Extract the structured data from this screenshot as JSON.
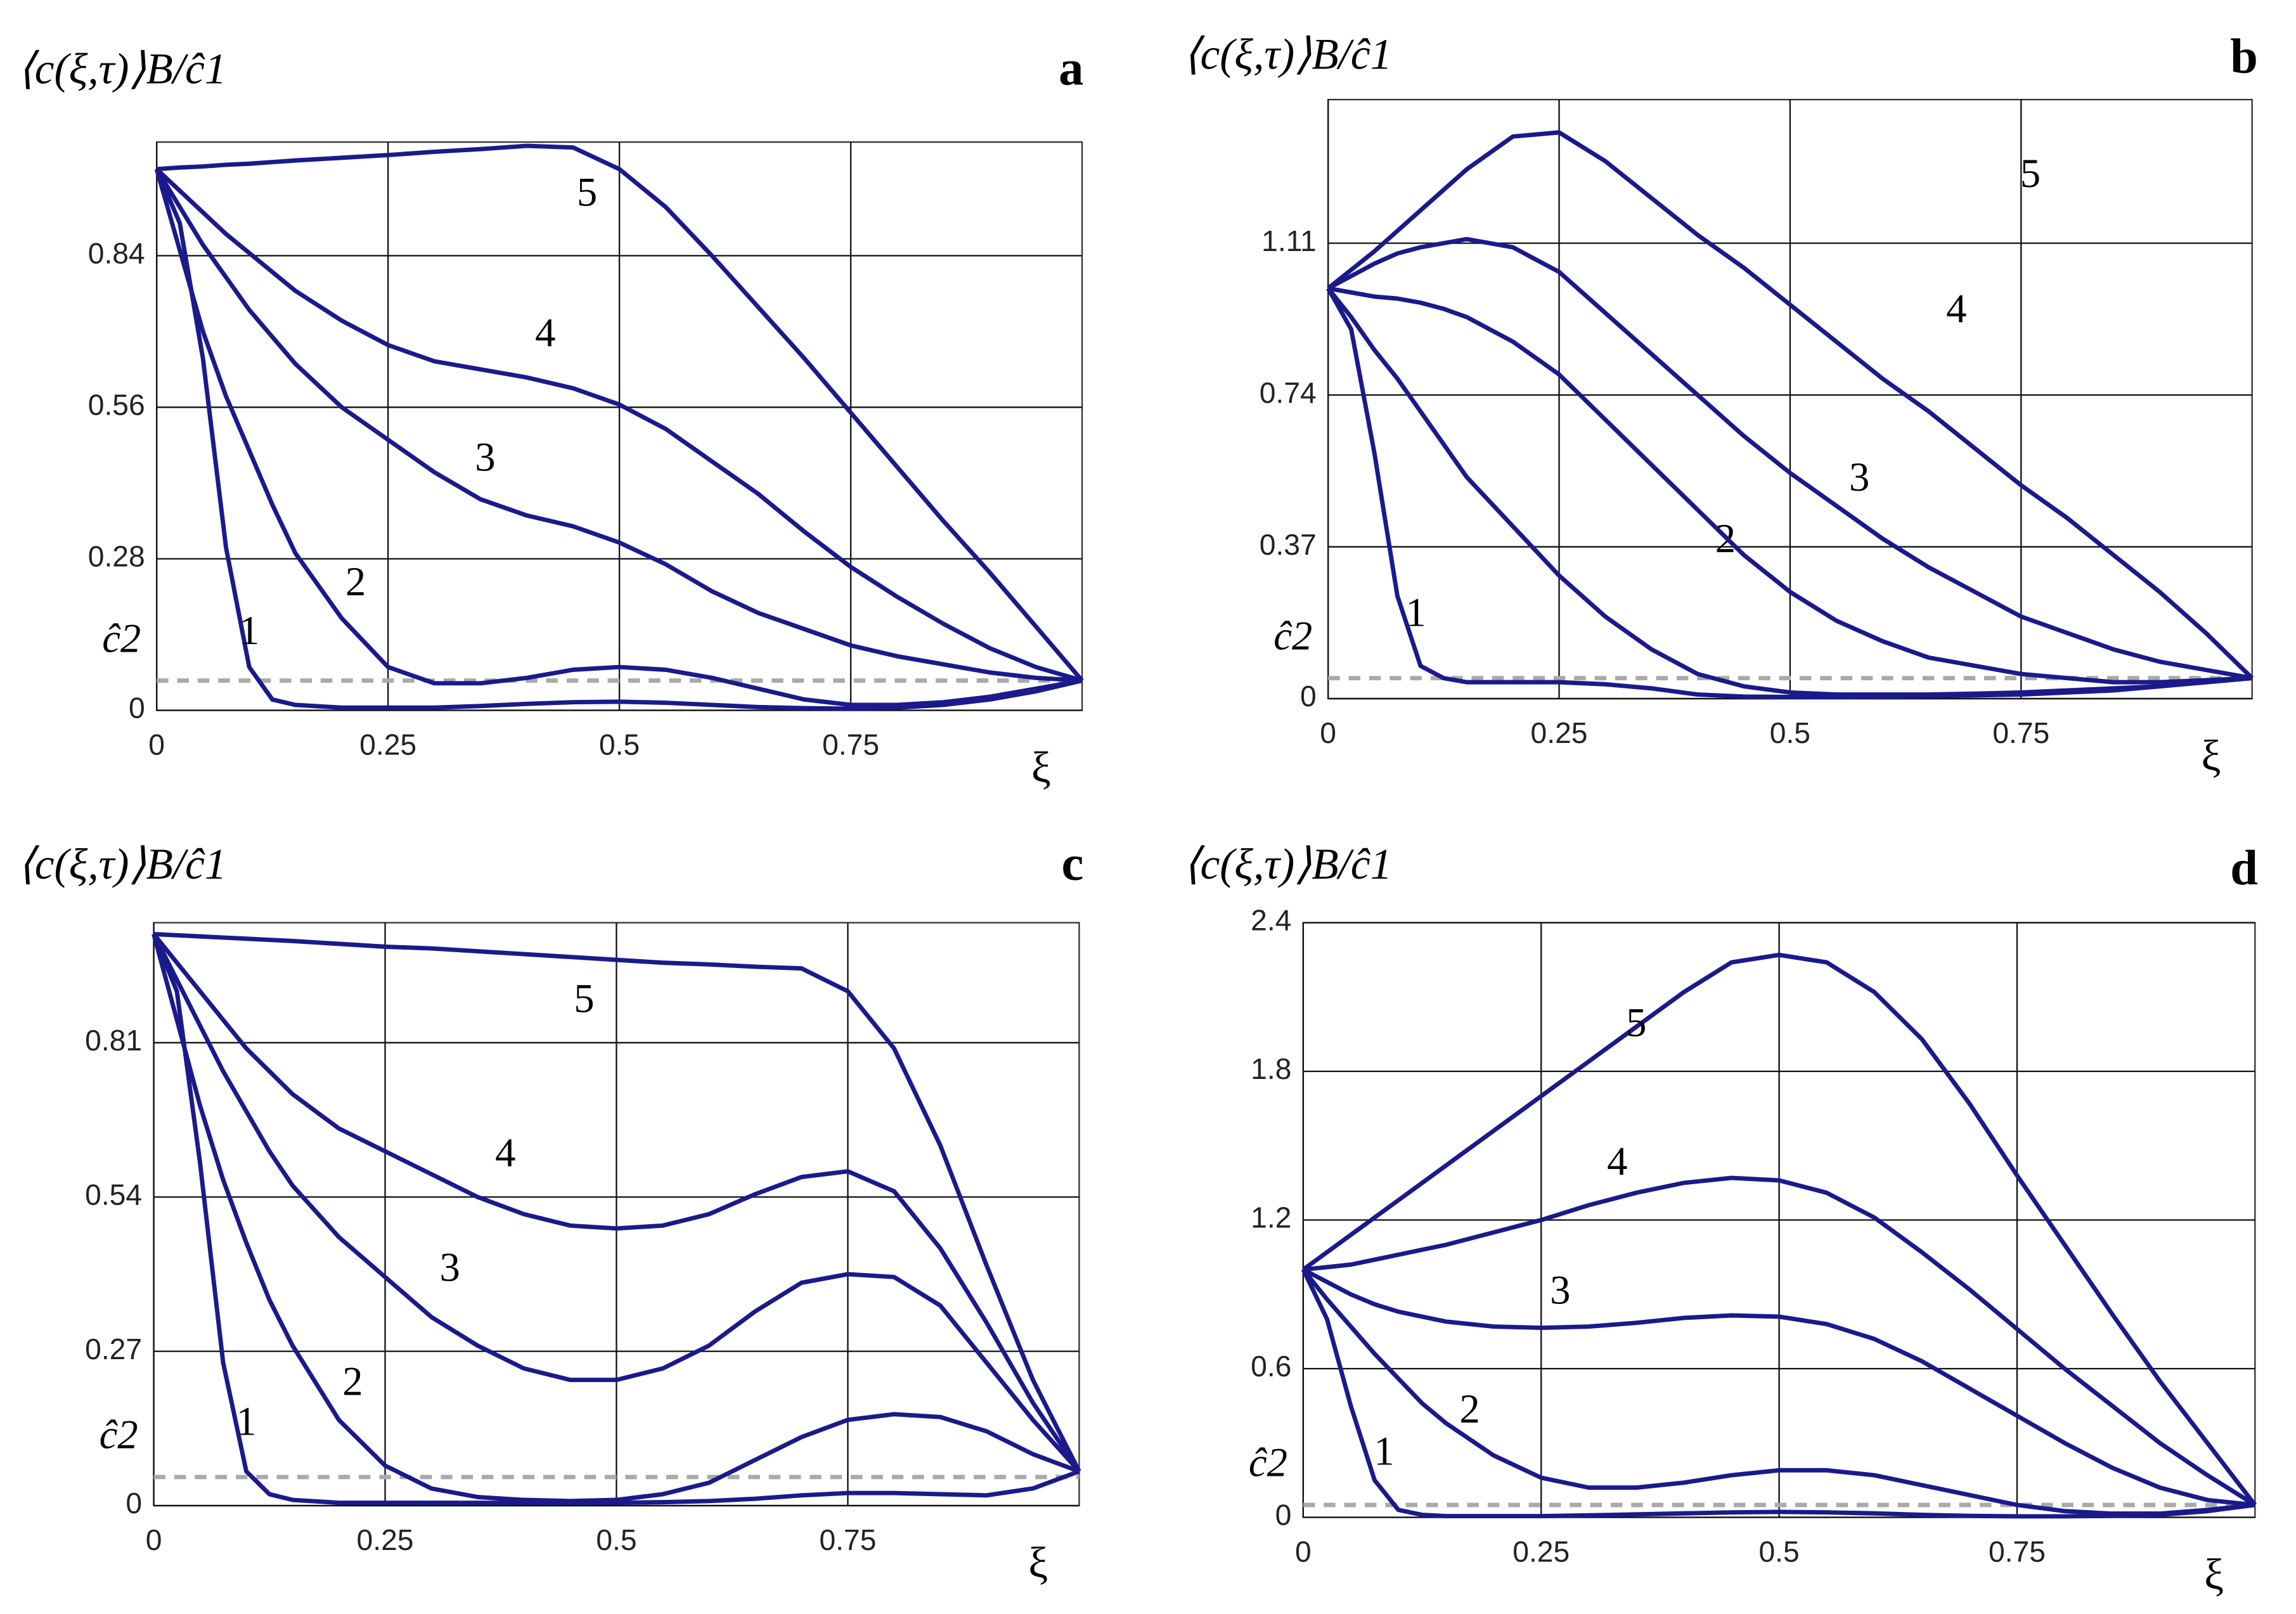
{
  "chart_data": [
    {
      "type": "line",
      "panel_label": "a",
      "y_label": "⟨c(ξ,τ)⟩B/ĉ1",
      "x_label": "ξ",
      "x": [
        0,
        0.025,
        0.05,
        0.075,
        0.1,
        0.125,
        0.15,
        0.2,
        0.25,
        0.3,
        0.35,
        0.4,
        0.45,
        0.5,
        0.55,
        0.6,
        0.65,
        0.7,
        0.75,
        0.8,
        0.85,
        0.9,
        0.95,
        1
      ],
      "xlim": [
        0,
        1
      ],
      "ylim": [
        0,
        1.05
      ],
      "xticks": [
        0,
        0.25,
        0.5,
        0.75
      ],
      "yticks": [
        0,
        0.28,
        0.56,
        0.84
      ],
      "grid": true,
      "reference_line": {
        "label": "ĉ2",
        "value": 0.055,
        "color": "#aaaaaa"
      },
      "series": [
        {
          "name": "1",
          "color": "#1a1a8c",
          "values": [
            1,
            0.9,
            0.65,
            0.3,
            0.08,
            0.02,
            0.01,
            0.005,
            0.005,
            0.005,
            0.008,
            0.012,
            0.015,
            0.016,
            0.014,
            0.01,
            0.006,
            0.004,
            0.003,
            0.005,
            0.01,
            0.02,
            0.035,
            0.055
          ]
        },
        {
          "name": "2",
          "color": "#1a1a8c",
          "values": [
            1,
            0.85,
            0.7,
            0.58,
            0.48,
            0.38,
            0.29,
            0.17,
            0.08,
            0.05,
            0.05,
            0.06,
            0.075,
            0.08,
            0.075,
            0.06,
            0.04,
            0.02,
            0.01,
            0.01,
            0.015,
            0.025,
            0.04,
            0.055
          ]
        },
        {
          "name": "3",
          "color": "#1a1a8c",
          "values": [
            1,
            0.93,
            0.86,
            0.8,
            0.74,
            0.69,
            0.64,
            0.56,
            0.5,
            0.44,
            0.39,
            0.36,
            0.34,
            0.31,
            0.27,
            0.22,
            0.18,
            0.15,
            0.12,
            0.1,
            0.085,
            0.07,
            0.06,
            0.055
          ]
        },
        {
          "name": "4",
          "color": "#1a1a8c",
          "values": [
            1,
            0.96,
            0.92,
            0.88,
            0.845,
            0.81,
            0.775,
            0.72,
            0.675,
            0.645,
            0.63,
            0.615,
            0.595,
            0.565,
            0.52,
            0.46,
            0.4,
            0.33,
            0.265,
            0.21,
            0.16,
            0.115,
            0.08,
            0.055
          ]
        },
        {
          "name": "5",
          "color": "#1a1a8c",
          "values": [
            1,
            1.003,
            1.005,
            1.008,
            1.01,
            1.013,
            1.016,
            1.021,
            1.026,
            1.032,
            1.037,
            1.043,
            1.04,
            1.0,
            0.93,
            0.84,
            0.745,
            0.65,
            0.55,
            0.45,
            0.35,
            0.255,
            0.155,
            0.055
          ]
        }
      ]
    },
    {
      "type": "line",
      "panel_label": "b",
      "y_label": "⟨c(ξ,τ)⟩B/ĉ1",
      "x_label": "ξ",
      "x": [
        0,
        0.025,
        0.05,
        0.075,
        0.1,
        0.125,
        0.15,
        0.2,
        0.25,
        0.3,
        0.35,
        0.4,
        0.45,
        0.5,
        0.55,
        0.6,
        0.65,
        0.7,
        0.75,
        0.8,
        0.85,
        0.9,
        0.95,
        1
      ],
      "xlim": [
        0,
        1
      ],
      "ylim": [
        0,
        1.46
      ],
      "xticks": [
        0,
        0.25,
        0.5,
        0.75
      ],
      "yticks": [
        0,
        0.37,
        0.74,
        1.11
      ],
      "grid": true,
      "reference_line": {
        "label": "ĉ2",
        "value": 0.05,
        "color": "#aaaaaa"
      },
      "series": [
        {
          "name": "1",
          "color": "#1a1a8c",
          "values": [
            1,
            0.9,
            0.6,
            0.25,
            0.08,
            0.05,
            0.04,
            0.04,
            0.04,
            0.035,
            0.025,
            0.01,
            0.005,
            0.004,
            0.004,
            0.005,
            0.006,
            0.008,
            0.01,
            0.015,
            0.02,
            0.03,
            0.04,
            0.05
          ]
        },
        {
          "name": "2",
          "color": "#1a1a8c",
          "values": [
            1,
            0.93,
            0.85,
            0.78,
            0.7,
            0.62,
            0.54,
            0.42,
            0.3,
            0.2,
            0.12,
            0.06,
            0.03,
            0.015,
            0.01,
            0.01,
            0.01,
            0.012,
            0.015,
            0.02,
            0.025,
            0.03,
            0.04,
            0.05
          ]
        },
        {
          "name": "3",
          "color": "#1a1a8c",
          "values": [
            1,
            0.99,
            0.98,
            0.975,
            0.965,
            0.95,
            0.93,
            0.87,
            0.79,
            0.68,
            0.57,
            0.46,
            0.35,
            0.26,
            0.19,
            0.14,
            0.1,
            0.08,
            0.06,
            0.05,
            0.04,
            0.04,
            0.045,
            0.05
          ]
        },
        {
          "name": "4",
          "color": "#1a1a8c",
          "values": [
            1,
            1.03,
            1.06,
            1.085,
            1.1,
            1.11,
            1.12,
            1.1,
            1.04,
            0.94,
            0.84,
            0.74,
            0.64,
            0.55,
            0.47,
            0.39,
            0.32,
            0.26,
            0.2,
            0.16,
            0.12,
            0.09,
            0.07,
            0.05
          ]
        },
        {
          "name": "5",
          "color": "#1a1a8c",
          "values": [
            1,
            1.045,
            1.09,
            1.14,
            1.19,
            1.24,
            1.29,
            1.37,
            1.38,
            1.31,
            1.22,
            1.13,
            1.05,
            0.96,
            0.87,
            0.78,
            0.7,
            0.61,
            0.52,
            0.44,
            0.35,
            0.26,
            0.16,
            0.05
          ]
        }
      ]
    },
    {
      "type": "line",
      "panel_label": "c",
      "y_label": "⟨c(ξ,τ)⟩B/ĉ1",
      "x_label": "ξ",
      "x": [
        0,
        0.025,
        0.05,
        0.075,
        0.1,
        0.125,
        0.15,
        0.2,
        0.25,
        0.3,
        0.35,
        0.4,
        0.45,
        0.5,
        0.55,
        0.6,
        0.65,
        0.7,
        0.75,
        0.8,
        0.85,
        0.9,
        0.95,
        1
      ],
      "xlim": [
        0,
        1
      ],
      "ylim": [
        0,
        1.02
      ],
      "xticks": [
        0,
        0.25,
        0.5,
        0.75
      ],
      "yticks": [
        0,
        0.27,
        0.54,
        0.81
      ],
      "grid": true,
      "reference_line": {
        "label": "ĉ2",
        "value": 0.05,
        "color": "#aaaaaa"
      },
      "series": [
        {
          "name": "1",
          "color": "#1a1a8c",
          "values": [
            1,
            0.9,
            0.6,
            0.25,
            0.06,
            0.02,
            0.01,
            0.005,
            0.005,
            0.005,
            0.005,
            0.005,
            0.005,
            0.005,
            0.006,
            0.008,
            0.012,
            0.018,
            0.022,
            0.022,
            0.02,
            0.018,
            0.03,
            0.06
          ]
        },
        {
          "name": "2",
          "color": "#1a1a8c",
          "values": [
            1,
            0.85,
            0.7,
            0.57,
            0.46,
            0.36,
            0.28,
            0.15,
            0.07,
            0.03,
            0.015,
            0.01,
            0.008,
            0.01,
            0.02,
            0.04,
            0.08,
            0.12,
            0.15,
            0.16,
            0.155,
            0.13,
            0.09,
            0.06
          ]
        },
        {
          "name": "3",
          "color": "#1a1a8c",
          "values": [
            1,
            0.92,
            0.84,
            0.76,
            0.69,
            0.62,
            0.56,
            0.47,
            0.4,
            0.33,
            0.28,
            0.24,
            0.22,
            0.22,
            0.24,
            0.28,
            0.34,
            0.39,
            0.405,
            0.4,
            0.35,
            0.25,
            0.15,
            0.06
          ]
        },
        {
          "name": "4",
          "color": "#1a1a8c",
          "values": [
            1,
            0.95,
            0.9,
            0.85,
            0.8,
            0.76,
            0.72,
            0.66,
            0.62,
            0.58,
            0.54,
            0.51,
            0.49,
            0.485,
            0.49,
            0.51,
            0.545,
            0.575,
            0.585,
            0.55,
            0.45,
            0.32,
            0.18,
            0.06
          ]
        },
        {
          "name": "5",
          "color": "#1a1a8c",
          "values": [
            1,
            0.998,
            0.996,
            0.994,
            0.992,
            0.99,
            0.988,
            0.983,
            0.978,
            0.975,
            0.97,
            0.965,
            0.96,
            0.955,
            0.95,
            0.947,
            0.943,
            0.94,
            0.9,
            0.8,
            0.63,
            0.42,
            0.22,
            0.06
          ]
        }
      ]
    },
    {
      "type": "line",
      "panel_label": "d",
      "y_label": "⟨c(ξ,τ)⟩B/ĉ1",
      "x_label": "ξ",
      "x": [
        0,
        0.025,
        0.05,
        0.075,
        0.1,
        0.125,
        0.15,
        0.2,
        0.25,
        0.3,
        0.35,
        0.4,
        0.45,
        0.5,
        0.55,
        0.6,
        0.65,
        0.7,
        0.75,
        0.8,
        0.85,
        0.9,
        0.95,
        1
      ],
      "xlim": [
        0,
        1
      ],
      "ylim": [
        0,
        2.4
      ],
      "xticks": [
        0,
        0.25,
        0.5,
        0.75
      ],
      "yticks": [
        0,
        0.6,
        1.2,
        1.8,
        2.4
      ],
      "grid": true,
      "reference_line": {
        "label": "ĉ2",
        "value": 0.05,
        "color": "#aaaaaa"
      },
      "series": [
        {
          "name": "1",
          "color": "#1a1a8c",
          "values": [
            1,
            0.8,
            0.45,
            0.15,
            0.03,
            0.01,
            0.005,
            0.005,
            0.005,
            0.008,
            0.012,
            0.016,
            0.02,
            0.022,
            0.02,
            0.016,
            0.01,
            0.006,
            0.004,
            0.004,
            0.006,
            0.01,
            0.025,
            0.05
          ]
        },
        {
          "name": "2",
          "color": "#1a1a8c",
          "values": [
            1,
            0.88,
            0.77,
            0.66,
            0.56,
            0.46,
            0.38,
            0.25,
            0.16,
            0.12,
            0.12,
            0.14,
            0.17,
            0.19,
            0.19,
            0.17,
            0.13,
            0.09,
            0.05,
            0.025,
            0.015,
            0.015,
            0.03,
            0.05
          ]
        },
        {
          "name": "3",
          "color": "#1a1a8c",
          "values": [
            1,
            0.95,
            0.9,
            0.86,
            0.83,
            0.81,
            0.79,
            0.77,
            0.765,
            0.77,
            0.785,
            0.805,
            0.815,
            0.81,
            0.78,
            0.72,
            0.63,
            0.52,
            0.41,
            0.3,
            0.2,
            0.12,
            0.07,
            0.05
          ]
        },
        {
          "name": "4",
          "color": "#1a1a8c",
          "values": [
            1,
            1.01,
            1.02,
            1.04,
            1.06,
            1.08,
            1.1,
            1.15,
            1.2,
            1.26,
            1.31,
            1.35,
            1.37,
            1.36,
            1.31,
            1.21,
            1.07,
            0.92,
            0.76,
            0.6,
            0.45,
            0.3,
            0.17,
            0.05
          ]
        },
        {
          "name": "5",
          "color": "#1a1a8c",
          "values": [
            1,
            1.07,
            1.14,
            1.21,
            1.28,
            1.35,
            1.42,
            1.56,
            1.7,
            1.84,
            1.98,
            2.12,
            2.24,
            2.27,
            2.24,
            2.12,
            1.93,
            1.67,
            1.38,
            1.1,
            0.82,
            0.55,
            0.3,
            0.05
          ]
        }
      ]
    }
  ]
}
